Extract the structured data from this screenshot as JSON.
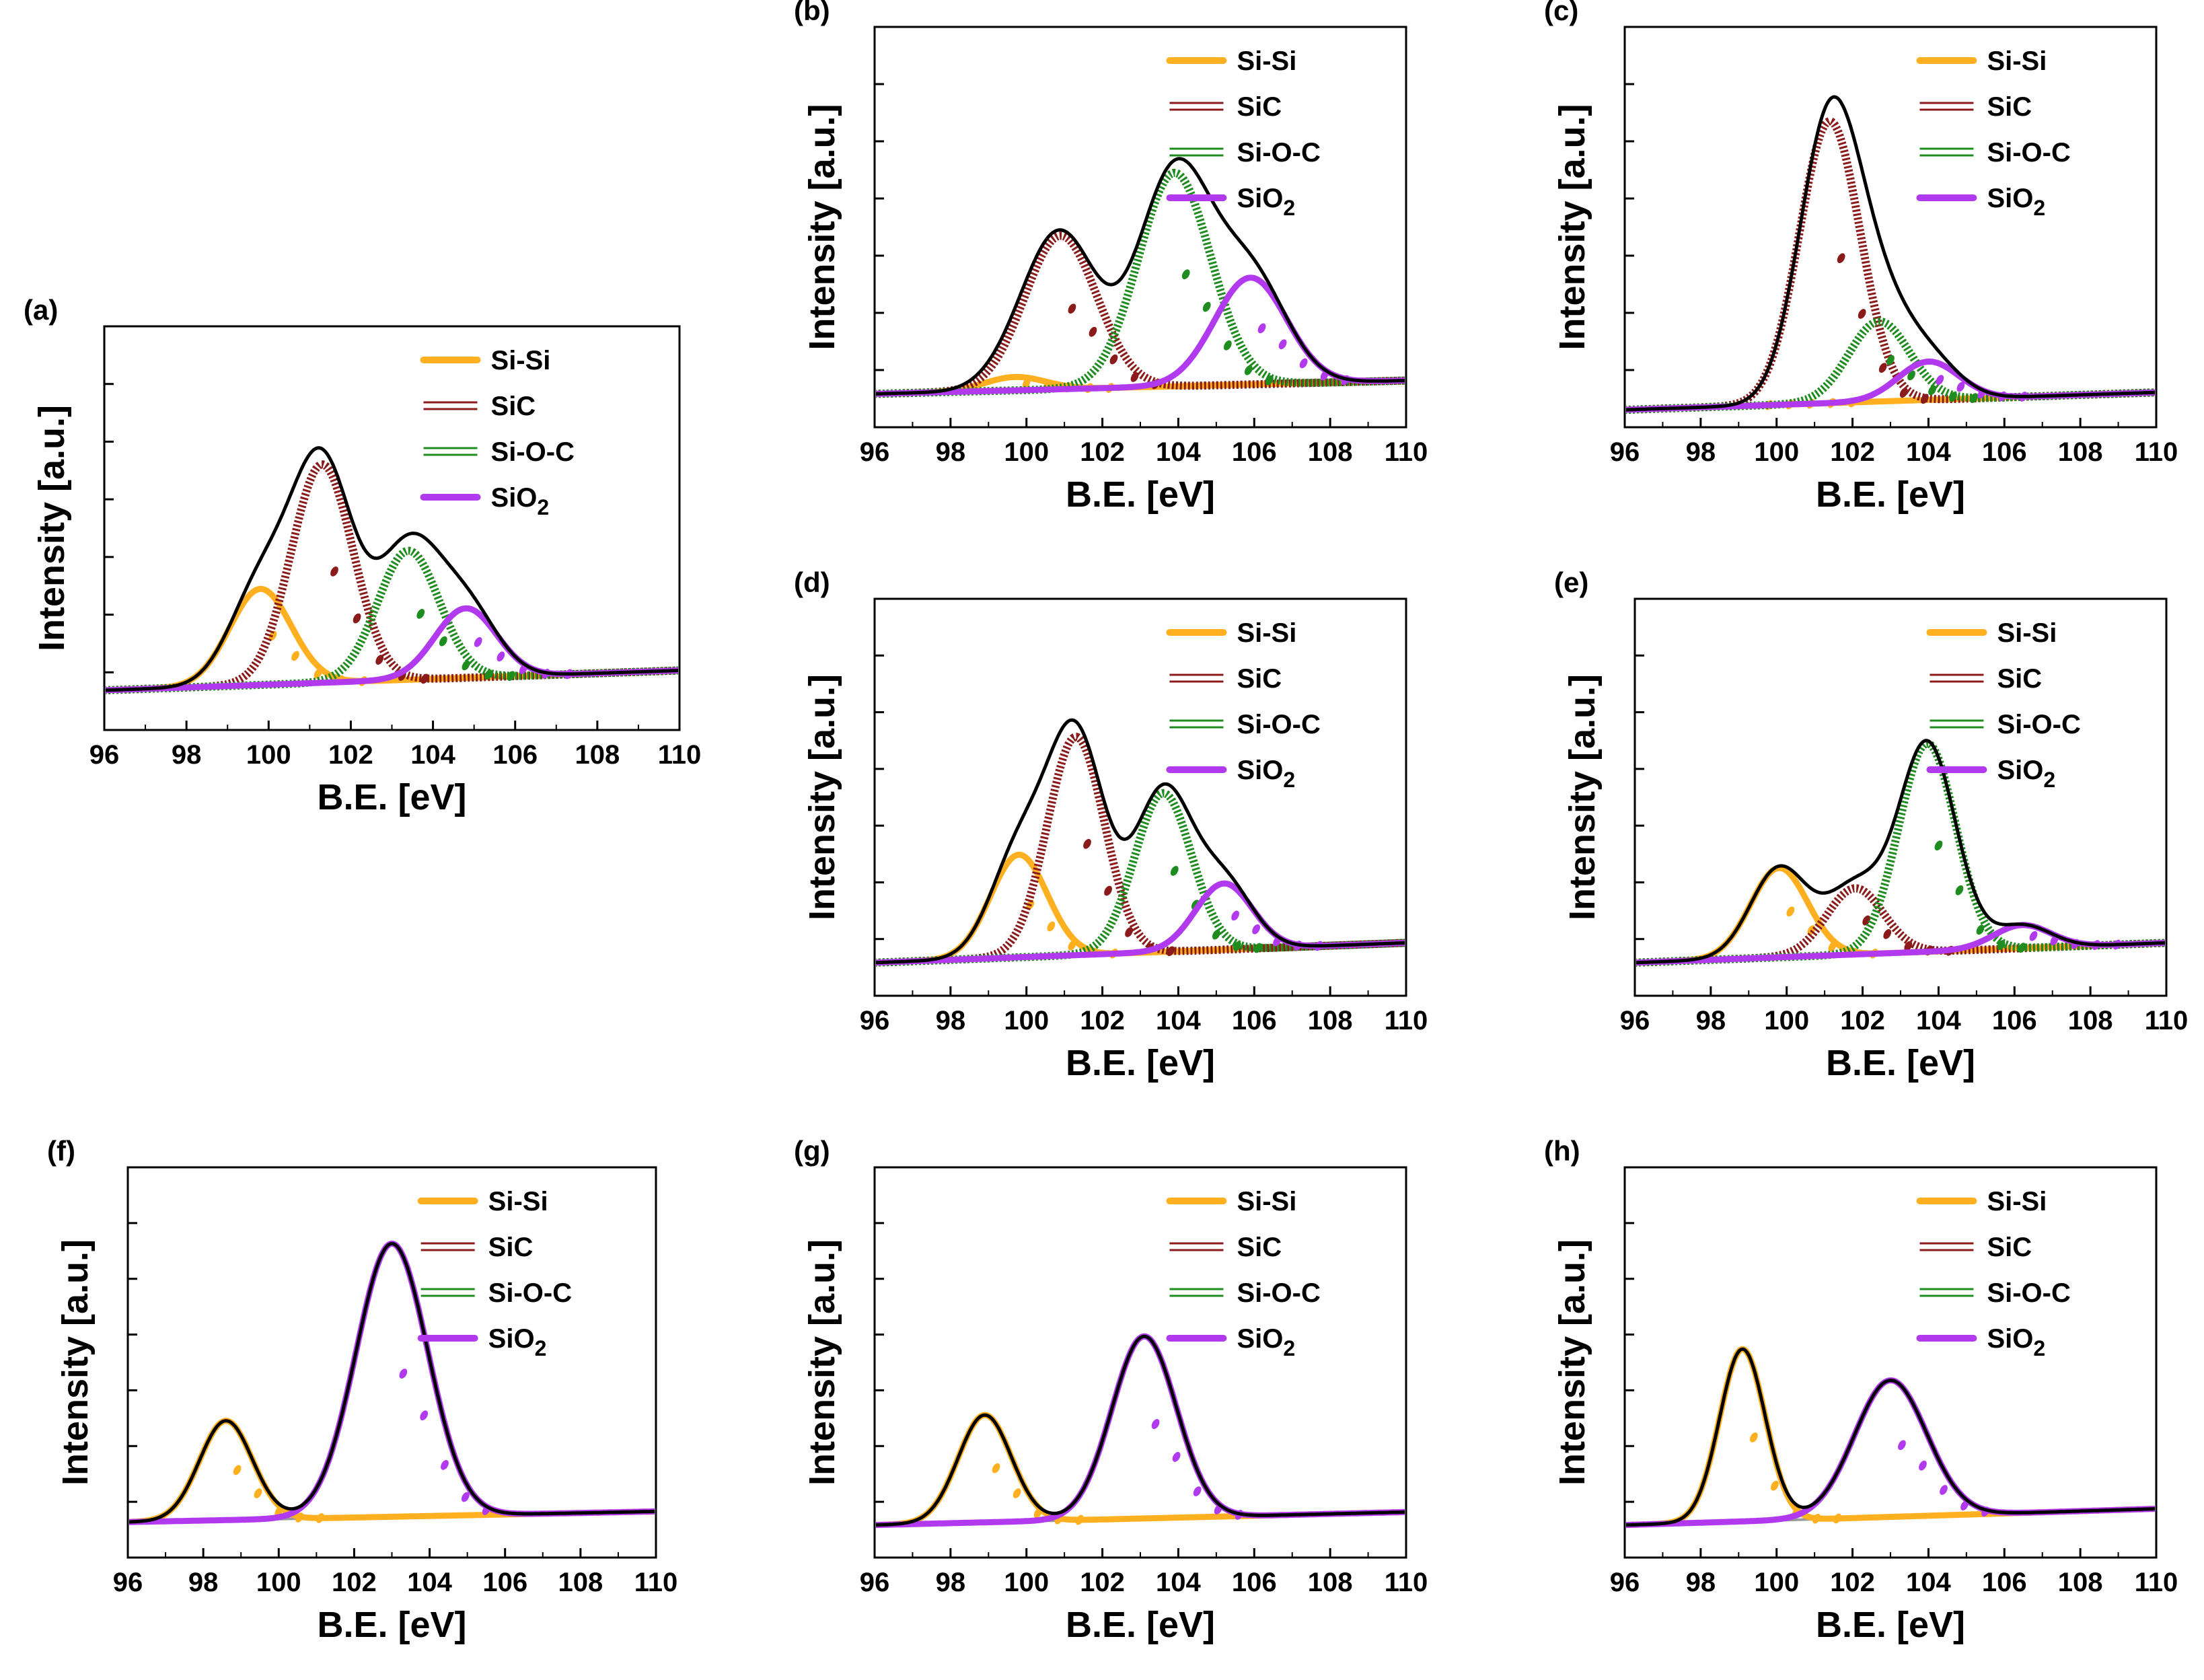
{
  "figure": {
    "palette": {
      "envelope": "#000000",
      "Si-Si": "#FFB020",
      "SiC": "#8B1A1A",
      "Si-O-C": "#1E8C1E",
      "SiO2": "#B23AEE",
      "background_line": "#9a9a9a"
    }
  },
  "chart_data": [
    {
      "panel": "(a)",
      "type": "line",
      "title": "",
      "xlabel": "B.E. [eV]",
      "ylabel": "Intensity [a.u.]",
      "xlim": [
        96,
        110
      ],
      "ylim": [
        -0.12,
        1.1
      ],
      "xticks": [
        "96",
        "98",
        "100",
        "102",
        "104",
        "106",
        "108",
        "110"
      ],
      "legend": [
        {
          "label": "Si-Si",
          "sub": "",
          "style": "solid"
        },
        {
          "label": "SiC",
          "sub": "",
          "style": "double"
        },
        {
          "label": "Si-O-C",
          "sub": "",
          "style": "double"
        },
        {
          "label": "SiO",
          "sub": "2",
          "style": "solid"
        }
      ],
      "baseline": [
        0.0,
        0.06
      ],
      "series": [
        {
          "name": "Si-Si",
          "center": 99.8,
          "height": 0.29,
          "width": 0.75
        },
        {
          "name": "SiC",
          "center": 101.3,
          "height": 0.66,
          "width": 0.75
        },
        {
          "name": "Si-O-C",
          "center": 103.4,
          "height": 0.39,
          "width": 0.75
        },
        {
          "name": "SiO2",
          "center": 104.8,
          "height": 0.21,
          "width": 0.75
        }
      ]
    },
    {
      "panel": "(b)",
      "type": "line",
      "title": "",
      "xlabel": "B.E. [eV]",
      "ylabel": "Intensity [a.u.]",
      "xlim": [
        96,
        110
      ],
      "ylim": [
        -0.1,
        1.1
      ],
      "xticks": [
        "96",
        "98",
        "100",
        "102",
        "104",
        "106",
        "108",
        "110"
      ],
      "legend": [
        {
          "label": "Si-Si",
          "sub": "",
          "style": "solid"
        },
        {
          "label": "SiC",
          "sub": "",
          "style": "double"
        },
        {
          "label": "Si-O-C",
          "sub": "",
          "style": "double"
        },
        {
          "label": "SiO",
          "sub": "2",
          "style": "solid"
        }
      ],
      "baseline": [
        0.0,
        0.04
      ],
      "series": [
        {
          "name": "Si-Si",
          "center": 99.7,
          "height": 0.04,
          "width": 0.8
        },
        {
          "name": "SiC",
          "center": 100.9,
          "height": 0.46,
          "width": 0.95
        },
        {
          "name": "Si-O-C",
          "center": 103.9,
          "height": 0.64,
          "width": 0.95
        },
        {
          "name": "SiO2",
          "center": 105.9,
          "height": 0.32,
          "width": 0.95
        }
      ]
    },
    {
      "panel": "(c)",
      "type": "line",
      "title": "",
      "xlabel": "B.E. [eV]",
      "ylabel": "Intensity [a.u.]",
      "xlim": [
        96,
        110
      ],
      "ylim": [
        -0.05,
        1.1
      ],
      "xticks": [
        "96",
        "98",
        "100",
        "102",
        "104",
        "106",
        "108",
        "110"
      ],
      "legend": [
        {
          "label": "Si-Si",
          "sub": "",
          "style": "solid"
        },
        {
          "label": "SiC",
          "sub": "",
          "style": "double"
        },
        {
          "label": "Si-O-C",
          "sub": "",
          "style": "double"
        },
        {
          "label": "SiO",
          "sub": "2",
          "style": "solid"
        }
      ],
      "baseline": [
        0.0,
        0.05
      ],
      "series": [
        {
          "name": "Si-Si",
          "center": 99.5,
          "height": 0.0,
          "width": 0.7
        },
        {
          "name": "SiC",
          "center": 101.4,
          "height": 0.81,
          "width": 0.8
        },
        {
          "name": "Si-O-C",
          "center": 102.7,
          "height": 0.23,
          "width": 0.8
        },
        {
          "name": "SiO2",
          "center": 104.0,
          "height": 0.11,
          "width": 0.8
        }
      ]
    },
    {
      "panel": "(d)",
      "type": "line",
      "title": "",
      "xlabel": "B.E. [eV]",
      "ylabel": "Intensity [a.u.]",
      "xlim": [
        96,
        110
      ],
      "ylim": [
        -0.1,
        1.1
      ],
      "xticks": [
        "96",
        "98",
        "100",
        "102",
        "104",
        "106",
        "108",
        "110"
      ],
      "legend": [
        {
          "label": "Si-Si",
          "sub": "",
          "style": "solid"
        },
        {
          "label": "SiC",
          "sub": "",
          "style": "double"
        },
        {
          "label": "Si-O-C",
          "sub": "",
          "style": "double"
        },
        {
          "label": "SiO",
          "sub": "2",
          "style": "solid"
        }
      ],
      "baseline": [
        0.0,
        0.06
      ],
      "series": [
        {
          "name": "Si-Si",
          "center": 99.8,
          "height": 0.31,
          "width": 0.75
        },
        {
          "name": "SiC",
          "center": 101.3,
          "height": 0.66,
          "width": 0.75
        },
        {
          "name": "Si-O-C",
          "center": 103.6,
          "height": 0.48,
          "width": 0.75
        },
        {
          "name": "SiO2",
          "center": 105.2,
          "height": 0.2,
          "width": 0.75
        }
      ]
    },
    {
      "panel": "(e)",
      "type": "line",
      "title": "",
      "xlabel": "B.E. [eV]",
      "ylabel": "Intensity [a.u.]",
      "xlim": [
        96,
        110
      ],
      "ylim": [
        -0.1,
        1.1
      ],
      "xticks": [
        "96",
        "98",
        "100",
        "102",
        "104",
        "106",
        "108",
        "110"
      ],
      "legend": [
        {
          "label": "Si-Si",
          "sub": "",
          "style": "solid"
        },
        {
          "label": "SiC",
          "sub": "",
          "style": "double"
        },
        {
          "label": "Si-O-C",
          "sub": "",
          "style": "double"
        },
        {
          "label": "SiO",
          "sub": "2",
          "style": "solid"
        }
      ],
      "baseline": [
        0.0,
        0.06
      ],
      "series": [
        {
          "name": "Si-Si",
          "center": 99.8,
          "height": 0.27,
          "width": 0.75
        },
        {
          "name": "SiC",
          "center": 101.8,
          "height": 0.2,
          "width": 0.75
        },
        {
          "name": "Si-O-C",
          "center": 103.7,
          "height": 0.63,
          "width": 0.75
        },
        {
          "name": "SiO2",
          "center": 106.2,
          "height": 0.07,
          "width": 0.75
        }
      ]
    },
    {
      "panel": "(f)",
      "type": "line",
      "title": "",
      "xlabel": "B.E. [eV]",
      "ylabel": "Intensity [a.u.]",
      "xlim": [
        96,
        110
      ],
      "ylim": [
        -0.1,
        1.0
      ],
      "xticks": [
        "96",
        "98",
        "100",
        "102",
        "104",
        "106",
        "108",
        "110"
      ],
      "legend": [
        {
          "label": "Si-Si",
          "sub": "",
          "style": "solid"
        },
        {
          "label": "SiC",
          "sub": "",
          "style": "double"
        },
        {
          "label": "Si-O-C",
          "sub": "",
          "style": "double"
        },
        {
          "label": "SiO",
          "sub": "2",
          "style": "solid"
        }
      ],
      "baseline": [
        0.0,
        0.03
      ],
      "series": [
        {
          "name": "Si-Si",
          "center": 98.6,
          "height": 0.28,
          "width": 0.7
        },
        {
          "name": "SiO2",
          "center": 103.0,
          "height": 0.77,
          "width": 0.95
        }
      ]
    },
    {
      "panel": "(g)",
      "type": "line",
      "title": "",
      "xlabel": "B.E. [eV]",
      "ylabel": "Intensity [a.u.]",
      "xlim": [
        96,
        110
      ],
      "ylim": [
        -0.1,
        1.1
      ],
      "xticks": [
        "96",
        "98",
        "100",
        "102",
        "104",
        "106",
        "108",
        "110"
      ],
      "legend": [
        {
          "label": "Si-Si",
          "sub": "",
          "style": "solid"
        },
        {
          "label": "SiC",
          "sub": "",
          "style": "double"
        },
        {
          "label": "Si-O-C",
          "sub": "",
          "style": "double"
        },
        {
          "label": "SiO",
          "sub": "2",
          "style": "solid"
        }
      ],
      "baseline": [
        0.0,
        0.04
      ],
      "series": [
        {
          "name": "Si-Si",
          "center": 98.9,
          "height": 0.33,
          "width": 0.7
        },
        {
          "name": "SiO2",
          "center": 103.1,
          "height": 0.56,
          "width": 0.85
        }
      ]
    },
    {
      "panel": "(h)",
      "type": "line",
      "title": "",
      "xlabel": "B.E. [eV]",
      "ylabel": "Intensity [a.u.]",
      "xlim": [
        96,
        110
      ],
      "ylim": [
        -0.1,
        1.1
      ],
      "xticks": [
        "96",
        "98",
        "100",
        "102",
        "104",
        "106",
        "108",
        "110"
      ],
      "legend": [
        {
          "label": "Si-Si",
          "sub": "",
          "style": "solid"
        },
        {
          "label": "SiC",
          "sub": "",
          "style": "double"
        },
        {
          "label": "Si-O-C",
          "sub": "",
          "style": "double"
        },
        {
          "label": "SiO",
          "sub": "2",
          "style": "solid"
        }
      ],
      "baseline": [
        0.0,
        0.05
      ],
      "series": [
        {
          "name": "Si-Si",
          "center": 99.1,
          "height": 0.53,
          "width": 0.6
        },
        {
          "name": "SiO2",
          "center": 103.0,
          "height": 0.42,
          "width": 0.95
        }
      ]
    }
  ]
}
